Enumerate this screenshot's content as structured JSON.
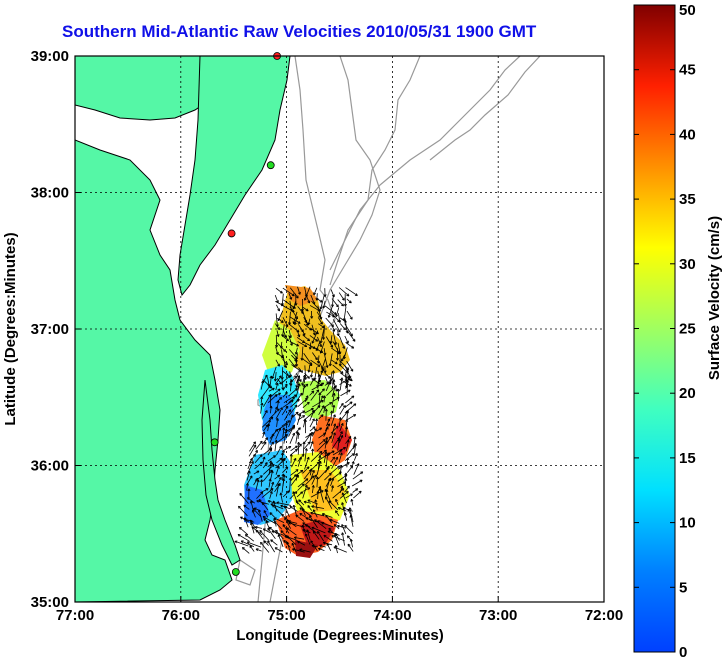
{
  "title": "Southern Mid-Atlantic Raw Velocities 2010/05/31 1900 GMT",
  "x_axis": {
    "label": "Longitude (Degrees:Minutes)",
    "ticks": [
      "77:00",
      "76:00",
      "75:00",
      "74:00",
      "73:00",
      "72:00"
    ],
    "values": [
      -77,
      -76,
      -75,
      -74,
      -73,
      -72
    ]
  },
  "y_axis": {
    "label": "Latitude (Degrees:Minutes)",
    "ticks": [
      "39:00",
      "38:00",
      "37:00",
      "36:00",
      "35:00"
    ],
    "values": [
      39,
      38,
      37,
      36,
      35
    ]
  },
  "colorbar": {
    "label": "Surface Velocity (cm/s)",
    "min": 0,
    "max": 50,
    "ticks": [
      "50",
      "45",
      "40",
      "35",
      "30",
      "25",
      "20",
      "15",
      "10",
      "5",
      "0"
    ],
    "tick_values": [
      50,
      45,
      40,
      35,
      30,
      25,
      20,
      15,
      10,
      5,
      0
    ],
    "colormap": "jet"
  },
  "colors": {
    "land": "#55f7a6",
    "water": "#ffffff",
    "coastline": "#000000",
    "bathymetry": "#999999",
    "grid": "#000000",
    "title": "#1010e8"
  },
  "stations": [
    {
      "lon": -75.09,
      "lat": 39.0,
      "color": "#ff2020"
    },
    {
      "lon": -75.15,
      "lat": 38.2,
      "color": "#22dd22"
    },
    {
      "lon": -75.52,
      "lat": 37.7,
      "color": "#ff2020"
    },
    {
      "lon": -75.68,
      "lat": 36.17,
      "color": "#22dd22"
    },
    {
      "lon": -75.48,
      "lat": 35.22,
      "color": "#22dd22"
    }
  ]
}
